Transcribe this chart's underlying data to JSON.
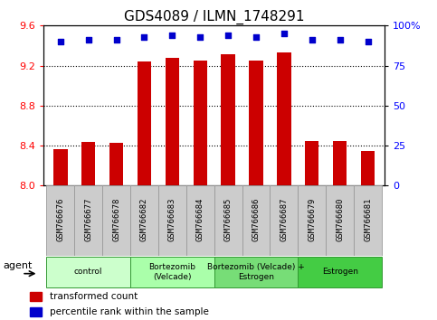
{
  "title": "GDS4089 / ILMN_1748291",
  "samples": [
    "GSM766676",
    "GSM766677",
    "GSM766678",
    "GSM766682",
    "GSM766683",
    "GSM766684",
    "GSM766685",
    "GSM766686",
    "GSM766687",
    "GSM766679",
    "GSM766680",
    "GSM766681"
  ],
  "bar_values": [
    8.36,
    8.44,
    8.43,
    9.24,
    9.28,
    9.25,
    9.31,
    9.25,
    9.33,
    8.45,
    8.45,
    8.35
  ],
  "dot_values": [
    90,
    91,
    91,
    93,
    94,
    93,
    94,
    93,
    95,
    91,
    91,
    90
  ],
  "ylim_left": [
    8.0,
    9.6
  ],
  "ylim_right": [
    0,
    100
  ],
  "yticks_left": [
    8.0,
    8.4,
    8.8,
    9.2,
    9.6
  ],
  "yticks_right": [
    0,
    25,
    50,
    75,
    100
  ],
  "ytick_labels_right": [
    "0",
    "25",
    "50",
    "75",
    "100%"
  ],
  "hlines": [
    8.4,
    8.8,
    9.2
  ],
  "group_configs": [
    {
      "label": "control",
      "indices": [
        0,
        1,
        2
      ],
      "color": "#ccffcc"
    },
    {
      "label": "Bortezomib\n(Velcade)",
      "indices": [
        3,
        4,
        5
      ],
      "color": "#aaffaa"
    },
    {
      "label": "Bortezomib (Velcade) +\nEstrogen",
      "indices": [
        6,
        7,
        8
      ],
      "color": "#77dd77"
    },
    {
      "label": "Estrogen",
      "indices": [
        9,
        10,
        11
      ],
      "color": "#44cc44"
    }
  ],
  "bar_color": "#cc0000",
  "dot_color": "#0000cc",
  "bar_bottom": 8.0,
  "sample_box_color": "#cccccc",
  "sample_box_edge": "#999999",
  "group_edge_color": "#339933",
  "agent_label": "agent",
  "title_fontsize": 11,
  "bar_width": 0.5
}
